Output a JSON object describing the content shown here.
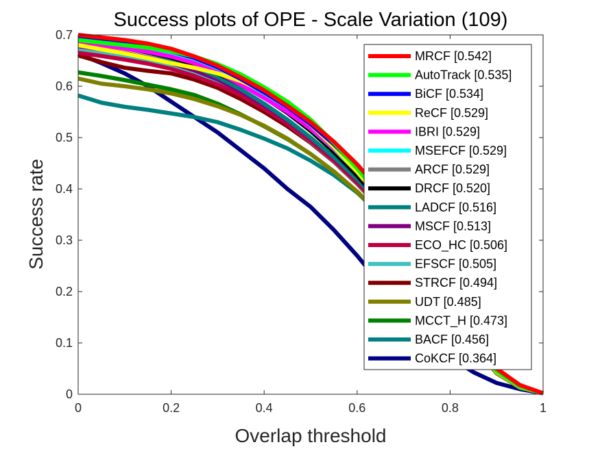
{
  "chart_data": {
    "type": "line",
    "title": "Success plots of OPE - Scale Variation (109)",
    "xlabel": "Overlap threshold",
    "ylabel": "Success rate",
    "xlim": [
      0,
      1
    ],
    "ylim": [
      0,
      0.7
    ],
    "x_ticks": [
      "0",
      "0.2",
      "0.4",
      "0.6",
      "0.8",
      "1"
    ],
    "y_ticks": [
      "0",
      "0.1",
      "0.2",
      "0.3",
      "0.4",
      "0.5",
      "0.6",
      "0.7"
    ],
    "x_tick_values": [
      0,
      0.2,
      0.4,
      0.6,
      0.8,
      1
    ],
    "y_tick_values": [
      0,
      0.1,
      0.2,
      0.3,
      0.4,
      0.5,
      0.6,
      0.7
    ],
    "grid": false,
    "legend_position": "top-right",
    "x": [
      0,
      0.05,
      0.1,
      0.15,
      0.2,
      0.25,
      0.3,
      0.35,
      0.4,
      0.45,
      0.5,
      0.55,
      0.6,
      0.65,
      0.7,
      0.75,
      0.8,
      0.85,
      0.9,
      0.95,
      1
    ],
    "series": [
      {
        "name": "MRCF [0.542]",
        "color": "#ff0000",
        "values": [
          0.7,
          0.695,
          0.69,
          0.683,
          0.673,
          0.658,
          0.64,
          0.617,
          0.592,
          0.562,
          0.53,
          0.492,
          0.448,
          0.395,
          0.335,
          0.265,
          0.19,
          0.11,
          0.05,
          0.018,
          0.002
        ]
      },
      {
        "name": "AutoTrack [0.535]",
        "color": "#00ff00",
        "values": [
          0.69,
          0.685,
          0.68,
          0.675,
          0.668,
          0.658,
          0.643,
          0.623,
          0.598,
          0.57,
          0.535,
          0.49,
          0.44,
          0.385,
          0.325,
          0.258,
          0.185,
          0.105,
          0.045,
          0.015,
          0.002
        ]
      },
      {
        "name": "BiCF [0.534]",
        "color": "#0000ff",
        "values": [
          0.695,
          0.69,
          0.684,
          0.677,
          0.668,
          0.655,
          0.637,
          0.614,
          0.588,
          0.56,
          0.526,
          0.487,
          0.442,
          0.388,
          0.328,
          0.26,
          0.185,
          0.105,
          0.045,
          0.015,
          0.002
        ]
      },
      {
        "name": "ReCF [0.529]",
        "color": "#ffff00",
        "values": [
          0.68,
          0.672,
          0.664,
          0.655,
          0.645,
          0.636,
          0.625,
          0.61,
          0.59,
          0.562,
          0.525,
          0.482,
          0.434,
          0.38,
          0.32,
          0.253,
          0.18,
          0.102,
          0.043,
          0.014,
          0.002
        ]
      },
      {
        "name": "IBRI [0.529]",
        "color": "#ff00ff",
        "values": [
          0.685,
          0.68,
          0.674,
          0.667,
          0.658,
          0.645,
          0.627,
          0.603,
          0.577,
          0.55,
          0.518,
          0.48,
          0.437,
          0.385,
          0.326,
          0.258,
          0.183,
          0.103,
          0.044,
          0.014,
          0.002
        ]
      },
      {
        "name": "MSEFCF [0.529]",
        "color": "#00ffff",
        "values": [
          0.69,
          0.685,
          0.679,
          0.672,
          0.663,
          0.65,
          0.632,
          0.608,
          0.581,
          0.552,
          0.518,
          0.479,
          0.434,
          0.382,
          0.323,
          0.256,
          0.182,
          0.103,
          0.044,
          0.014,
          0.002
        ]
      },
      {
        "name": "ARCF [0.529]",
        "color": "#808080",
        "values": [
          0.688,
          0.683,
          0.677,
          0.67,
          0.661,
          0.648,
          0.63,
          0.606,
          0.58,
          0.551,
          0.517,
          0.478,
          0.433,
          0.381,
          0.322,
          0.255,
          0.181,
          0.102,
          0.044,
          0.014,
          0.002
        ]
      },
      {
        "name": "DRCF [0.520]",
        "color": "#000000",
        "values": [
          0.685,
          0.68,
          0.674,
          0.666,
          0.656,
          0.642,
          0.625,
          0.603,
          0.578,
          0.548,
          0.513,
          0.472,
          0.426,
          0.374,
          0.316,
          0.25,
          0.178,
          0.1,
          0.043,
          0.014,
          0.002
        ]
      },
      {
        "name": "LADCF [0.516]",
        "color": "#008080",
        "values": [
          0.69,
          0.683,
          0.675,
          0.665,
          0.653,
          0.638,
          0.618,
          0.594,
          0.566,
          0.535,
          0.5,
          0.462,
          0.419,
          0.37,
          0.314,
          0.25,
          0.178,
          0.1,
          0.043,
          0.014,
          0.002
        ]
      },
      {
        "name": "MSCF [0.513]",
        "color": "#800080",
        "values": [
          0.678,
          0.672,
          0.665,
          0.656,
          0.645,
          0.631,
          0.613,
          0.59,
          0.563,
          0.533,
          0.499,
          0.461,
          0.418,
          0.369,
          0.313,
          0.249,
          0.177,
          0.1,
          0.043,
          0.014,
          0.002
        ]
      },
      {
        "name": "ECO_HC [0.506]",
        "color": "#c00040",
        "values": [
          0.665,
          0.659,
          0.652,
          0.644,
          0.634,
          0.62,
          0.603,
          0.582,
          0.556,
          0.527,
          0.493,
          0.455,
          0.412,
          0.364,
          0.309,
          0.246,
          0.175,
          0.099,
          0.042,
          0.014,
          0.002
        ]
      },
      {
        "name": "EFSCF [0.505]",
        "color": "#40c0c0",
        "values": [
          0.67,
          0.664,
          0.657,
          0.648,
          0.637,
          0.624,
          0.606,
          0.584,
          0.557,
          0.527,
          0.492,
          0.454,
          0.411,
          0.363,
          0.308,
          0.245,
          0.175,
          0.099,
          0.042,
          0.014,
          0.002
        ]
      },
      {
        "name": "STRCF [0.494]",
        "color": "#800000",
        "values": [
          0.66,
          0.647,
          0.636,
          0.63,
          0.625,
          0.613,
          0.597,
          0.575,
          0.55,
          0.522,
          0.49,
          0.453,
          0.41,
          0.362,
          0.307,
          0.244,
          0.174,
          0.098,
          0.042,
          0.014,
          0.002
        ]
      },
      {
        "name": "UDT [0.485]",
        "color": "#808000",
        "values": [
          0.615,
          0.605,
          0.6,
          0.594,
          0.586,
          0.575,
          0.561,
          0.544,
          0.523,
          0.498,
          0.468,
          0.434,
          0.395,
          0.35,
          0.298,
          0.238,
          0.17,
          0.096,
          0.041,
          0.013,
          0.002
        ]
      },
      {
        "name": "MCCT_H [0.473]",
        "color": "#008000",
        "values": [
          0.627,
          0.62,
          0.612,
          0.603,
          0.594,
          0.583,
          0.566,
          0.545,
          0.522,
          0.497,
          0.468,
          0.434,
          0.394,
          0.348,
          0.296,
          0.236,
          0.168,
          0.095,
          0.041,
          0.013,
          0.002
        ]
      },
      {
        "name": "BACF [0.456]",
        "color": "#008080",
        "values": [
          0.582,
          0.568,
          0.56,
          0.554,
          0.547,
          0.54,
          0.53,
          0.515,
          0.498,
          0.479,
          0.455,
          0.427,
          0.393,
          0.35,
          0.3,
          0.24,
          0.17,
          0.096,
          0.041,
          0.013,
          0.002
        ]
      },
      {
        "name": "CoKCF [0.364]",
        "color": "#000080",
        "values": [
          0.663,
          0.645,
          0.625,
          0.6,
          0.57,
          0.54,
          0.51,
          0.475,
          0.44,
          0.4,
          0.365,
          0.32,
          0.27,
          0.215,
          0.16,
          0.115,
          0.072,
          0.043,
          0.022,
          0.01,
          0.002
        ]
      }
    ]
  }
}
